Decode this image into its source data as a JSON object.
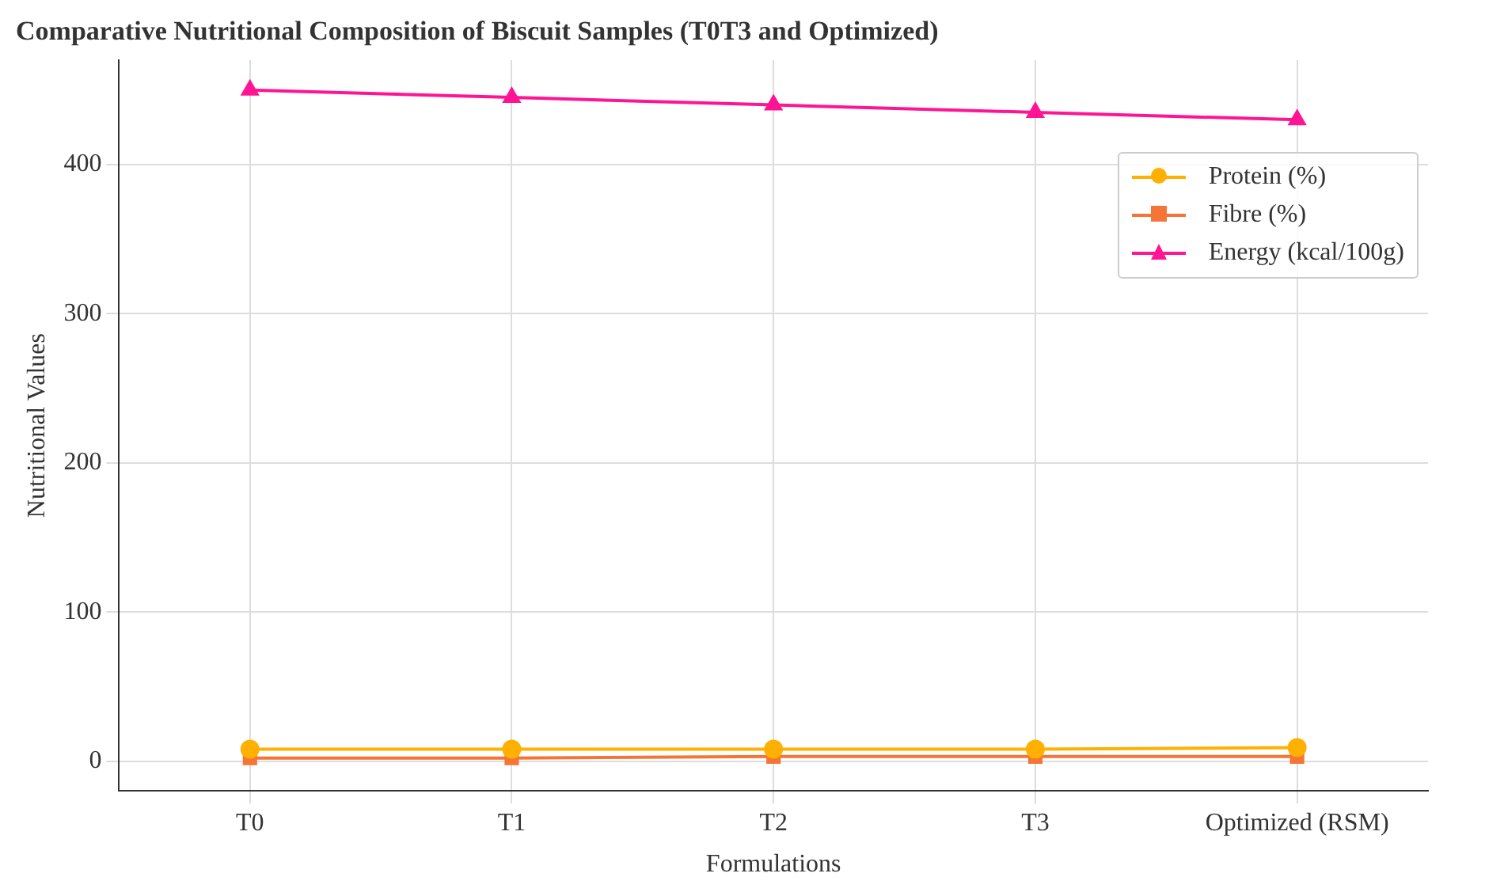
{
  "chart_data": {
    "type": "line",
    "title": "Comparative Nutritional Composition of Biscuit Samples (T0T3 and Optimized)",
    "xlabel": "Formulations",
    "ylabel": "Nutritional Values",
    "categories": [
      "T0",
      "T1",
      "T2",
      "T3",
      "Optimized (RSM)"
    ],
    "series": [
      {
        "name": "Protein (%)",
        "color": "#ffb000",
        "marker": "circle",
        "values": [
          8,
          8,
          8,
          8,
          9
        ]
      },
      {
        "name": "Fibre (%)",
        "color": "#f47536",
        "marker": "square",
        "values": [
          2,
          2,
          3,
          3,
          3
        ]
      },
      {
        "name": "Energy (kcal/100g)",
        "color": "#ff1493",
        "marker": "triangle",
        "values": [
          450,
          445,
          440,
          435,
          430
        ]
      }
    ],
    "ylim": [
      -20,
      470
    ],
    "yticks": [
      0,
      100,
      200,
      300,
      400
    ],
    "grid": true,
    "legend": "top right",
    "line_style": "solid"
  }
}
